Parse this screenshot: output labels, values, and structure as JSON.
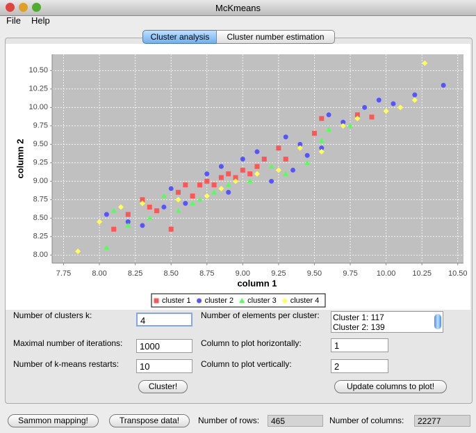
{
  "window": {
    "title": "McKmeans",
    "menu": [
      "File",
      "Help"
    ],
    "tabs": [
      "Cluster analysis",
      "Cluster number estimation"
    ]
  },
  "chart_data": {
    "type": "scatter",
    "xlabel": "column 1",
    "ylabel": "column 2",
    "grid": true,
    "xlim": [
      7.67,
      10.54
    ],
    "ylim": [
      7.89,
      10.72
    ],
    "xticks": [
      7.75,
      {
        "value": 8,
        "label": "8.00"
      },
      8.25,
      {
        "value": 8.5,
        "label": "8.50"
      },
      8.75,
      {
        "value": 9,
        "label": "9.00"
      },
      9.25,
      {
        "value": 9.5,
        "label": "9.50"
      },
      9.75,
      {
        "value": 10,
        "label": "10.00"
      },
      10.25,
      {
        "value": 10.5,
        "label": "10.50"
      }
    ],
    "yticks": [
      {
        "value": 8,
        "label": "8.00"
      },
      8.25,
      {
        "value": 8.5,
        "label": "8.50"
      },
      8.75,
      {
        "value": 9,
        "label": "9.00"
      },
      9.25,
      {
        "value": 9.5,
        "label": "9.50"
      },
      9.75,
      {
        "value": 10,
        "label": "10.00"
      },
      10.25,
      {
        "value": 10.5,
        "label": "10.50"
      }
    ],
    "series": [
      {
        "name": "cluster 1",
        "color": "#ff5555",
        "marker": "square",
        "x": [
          8.1,
          8.2,
          8.3,
          8.4,
          8.5,
          8.55,
          8.65,
          8.7,
          8.75,
          8.8,
          8.85,
          8.9,
          8.95,
          9.0,
          9.05,
          9.1,
          9.15,
          9.25,
          9.3,
          9.5,
          9.55,
          9.8,
          9.9,
          8.35,
          8.6
        ],
        "values": [
          8.35,
          8.55,
          8.75,
          8.6,
          8.35,
          8.85,
          8.8,
          8.95,
          9.0,
          8.95,
          9.05,
          9.1,
          9.05,
          9.15,
          9.1,
          9.2,
          9.3,
          9.45,
          9.3,
          9.65,
          9.85,
          9.9,
          9.87,
          8.65,
          8.95
        ]
      },
      {
        "name": "cluster 2",
        "color": "#5555ff",
        "marker": "circle",
        "x": [
          8.05,
          8.2,
          8.3,
          8.45,
          8.5,
          8.6,
          8.75,
          8.85,
          9.0,
          9.1,
          9.2,
          9.3,
          9.4,
          9.45,
          9.55,
          9.6,
          9.7,
          9.85,
          9.95,
          10.05,
          10.2,
          10.4,
          8.9,
          9.35
        ],
        "values": [
          8.55,
          8.45,
          8.4,
          8.65,
          8.9,
          8.7,
          9.1,
          9.2,
          9.3,
          9.4,
          9.0,
          9.6,
          9.5,
          9.35,
          9.45,
          9.9,
          9.8,
          10.0,
          10.1,
          10.05,
          10.17,
          10.3,
          8.85,
          9.15
        ]
      },
      {
        "name": "cluster 3",
        "color": "#55ff55",
        "marker": "triangle",
        "x": [
          8.05,
          8.1,
          8.2,
          8.35,
          8.45,
          8.55,
          8.65,
          8.8,
          8.9,
          9.05,
          9.2,
          9.3,
          9.45,
          9.55,
          9.6,
          9.75,
          8.7
        ],
        "values": [
          8.1,
          8.6,
          8.4,
          8.5,
          8.8,
          8.6,
          8.7,
          8.85,
          8.95,
          9.0,
          9.2,
          9.1,
          9.25,
          9.55,
          9.7,
          9.75,
          8.75
        ]
      },
      {
        "name": "cluster 4",
        "color": "#ffff55",
        "marker": "diamond",
        "x": [
          7.85,
          8.0,
          8.15,
          8.3,
          8.55,
          8.75,
          8.85,
          8.95,
          9.1,
          9.25,
          9.4,
          9.55,
          9.7,
          9.8,
          10.0,
          10.1,
          10.2,
          10.27
        ],
        "values": [
          8.05,
          8.45,
          8.65,
          8.7,
          8.75,
          8.8,
          8.9,
          9.0,
          9.1,
          9.15,
          9.45,
          9.4,
          9.75,
          9.85,
          9.95,
          10.0,
          10.1,
          10.6
        ]
      }
    ]
  },
  "form": {
    "k_label": "Number of clusters k:",
    "k": "4",
    "iter_label": "Maximal number of iterations:",
    "iter": "1000",
    "restarts_label": "Number of k-means restarts:",
    "restarts": "10",
    "elements_label": "Number of elements per cluster:",
    "elements": [
      "Cluster 1: 117",
      "Cluster 2: 139"
    ],
    "hcol_label": "Column to plot horizontally:",
    "hcol": "1",
    "vcol_label": "Column to plot vertically:",
    "vcol": "2",
    "cluster_button": "Cluster!",
    "update_button": "Update columns to plot!"
  },
  "footer": {
    "sammon_button": "Sammon mapping!",
    "transpose_button": "Transpose data!",
    "rows_label": "Number of rows:",
    "rows": "465",
    "cols_label": "Number of columns:",
    "cols": "22277"
  }
}
